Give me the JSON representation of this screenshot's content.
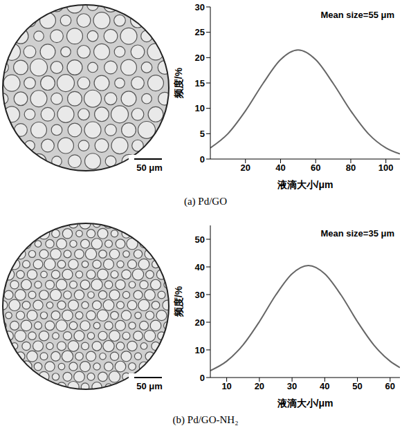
{
  "chart_data": [
    {
      "type": "line",
      "annotation": "Mean size=55 μm",
      "x_label": "液滴大小/μm",
      "y_label": "频度/%",
      "x": [
        0,
        10,
        20,
        30,
        40,
        50,
        60,
        70,
        80,
        90,
        100,
        108
      ],
      "values": [
        2.2,
        5.0,
        9.5,
        14.9,
        19.6,
        21.5,
        19.6,
        14.9,
        9.5,
        5.0,
        2.2,
        1.0
      ],
      "color": "#666666",
      "xlim": [
        0,
        108
      ],
      "xticks": [
        20,
        40,
        60,
        80,
        100
      ],
      "ylim": [
        0,
        30
      ],
      "yticks": [
        0,
        5,
        10,
        15,
        20,
        25,
        30
      ],
      "grid": false
    },
    {
      "type": "line",
      "annotation": "Mean size=35 μm",
      "x_label": "液滴大小/μm",
      "y_label": "频度/%",
      "x": [
        5,
        10,
        15,
        20,
        25,
        30,
        35,
        40,
        45,
        50,
        55,
        60,
        63
      ],
      "values": [
        2.5,
        5.9,
        11.8,
        20.2,
        29.8,
        37.5,
        40.5,
        37.5,
        29.8,
        20.2,
        11.8,
        5.9,
        3.6
      ],
      "color": "#666666",
      "xlim": [
        5,
        63
      ],
      "xticks": [
        10,
        20,
        30,
        40,
        50,
        60
      ],
      "ylim": [
        0,
        55
      ],
      "yticks": [
        0,
        10,
        20,
        30,
        40,
        50
      ],
      "grid": false
    }
  ],
  "panels": [
    {
      "caption": "(a) Pd/GO",
      "scale_bar": "50 μm"
    },
    {
      "caption": "(b) Pd/GO-NH₂",
      "scale_bar": "50 μm"
    }
  ]
}
